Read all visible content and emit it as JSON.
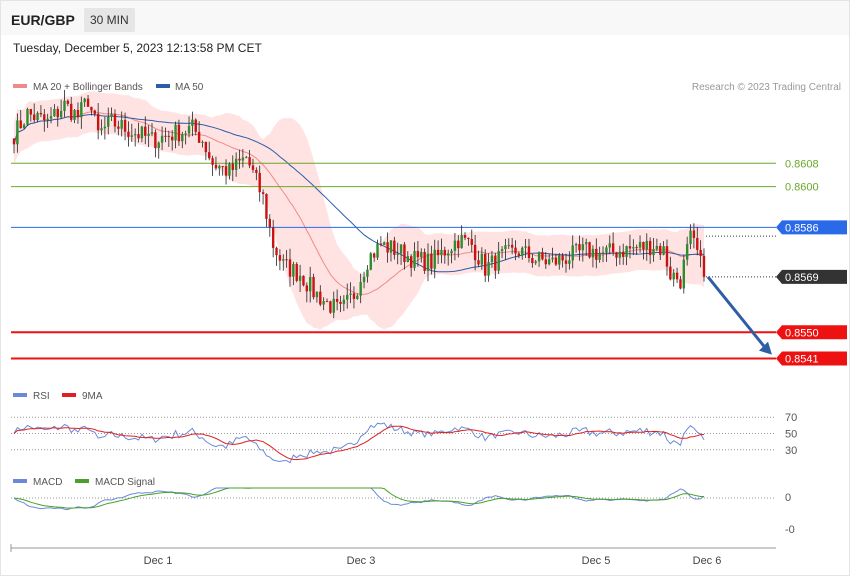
{
  "header": {
    "pair": "EUR/GBP",
    "timeframe": "30 MIN",
    "datetime": "Tuesday, December 5, 2023 12:13:58 PM CET"
  },
  "colors": {
    "bollinger": "#f08a8a",
    "ma50": "#2a5ea8",
    "bull": "#2e8b2e",
    "bear": "#cc1111",
    "rsi": "#6a8ad8",
    "rsi_ma": "#e02020",
    "macd": "#6a8ad8",
    "macd_signal": "#4aa02a",
    "resistance": "#6aa82a",
    "pivot": "#2a6ae8",
    "support": "#ee1111",
    "current": "#333333"
  },
  "chart_data": [
    {
      "type": "candlestick",
      "legend": [
        "MA 20 + Bollinger Bands",
        "MA 50"
      ],
      "source": "Research © 2023 Trading Central",
      "x_labels": [
        "Dec 1",
        "Dec 3",
        "Dec 5",
        "Dec 6"
      ],
      "ylim": [
        0.8535,
        0.864
      ],
      "levels": [
        {
          "label": "0.8608",
          "value": 0.8608,
          "kind": "resistance"
        },
        {
          "label": "0.8600",
          "value": 0.86,
          "kind": "resistance"
        },
        {
          "label": "0.8586",
          "value": 0.8586,
          "kind": "pivot"
        },
        {
          "label": "0.8569",
          "value": 0.8569,
          "kind": "current"
        },
        {
          "label": "0.8550",
          "value": 0.855,
          "kind": "support"
        },
        {
          "label": "0.8541",
          "value": 0.8541,
          "kind": "support"
        }
      ],
      "price_anchors": [
        [
          0,
          0.8618
        ],
        [
          4,
          0.8625
        ],
        [
          10,
          0.8622
        ],
        [
          15,
          0.8628
        ],
        [
          19,
          0.8624
        ],
        [
          22,
          0.863
        ],
        [
          25,
          0.8618
        ],
        [
          29,
          0.8622
        ],
        [
          35,
          0.8619
        ],
        [
          41,
          0.8616
        ],
        [
          47,
          0.8618
        ],
        [
          53,
          0.862
        ],
        [
          56,
          0.8616
        ],
        [
          59,
          0.8608
        ],
        [
          64,
          0.8605
        ],
        [
          69,
          0.861
        ],
        [
          74,
          0.8596
        ],
        [
          77,
          0.858
        ],
        [
          80,
          0.8573
        ],
        [
          85,
          0.857
        ],
        [
          89,
          0.8564
        ],
        [
          93,
          0.856
        ],
        [
          97,
          0.8557
        ],
        [
          101,
          0.8563
        ],
        [
          105,
          0.8575
        ],
        [
          109,
          0.858
        ],
        [
          114,
          0.8578
        ],
        [
          119,
          0.8575
        ],
        [
          124,
          0.8574
        ],
        [
          128,
          0.8578
        ],
        [
          132,
          0.8582
        ],
        [
          136,
          0.858
        ],
        [
          140,
          0.8572
        ],
        [
          145,
          0.8576
        ],
        [
          150,
          0.8578
        ],
        [
          155,
          0.8575
        ],
        [
          160,
          0.8574
        ],
        [
          165,
          0.8576
        ],
        [
          170,
          0.8578
        ],
        [
          175,
          0.8577
        ],
        [
          180,
          0.8578
        ],
        [
          185,
          0.8579
        ],
        [
          190,
          0.858
        ],
        [
          193,
          0.8578
        ],
        [
          195,
          0.857
        ],
        [
          198,
          0.8568
        ],
        [
          200,
          0.8578
        ],
        [
          201,
          0.8582
        ],
        [
          203,
          0.8577
        ],
        [
          205,
          0.8569
        ]
      ],
      "rsi_panel": {
        "legend": [
          "RSI",
          "9MA"
        ],
        "levels": [
          70,
          50,
          30
        ],
        "ylim": [
          15,
          85
        ]
      },
      "macd_panel": {
        "legend": [
          "MACD",
          "MACD Signal"
        ],
        "tick_labels": [
          "0",
          "-0"
        ]
      }
    }
  ]
}
